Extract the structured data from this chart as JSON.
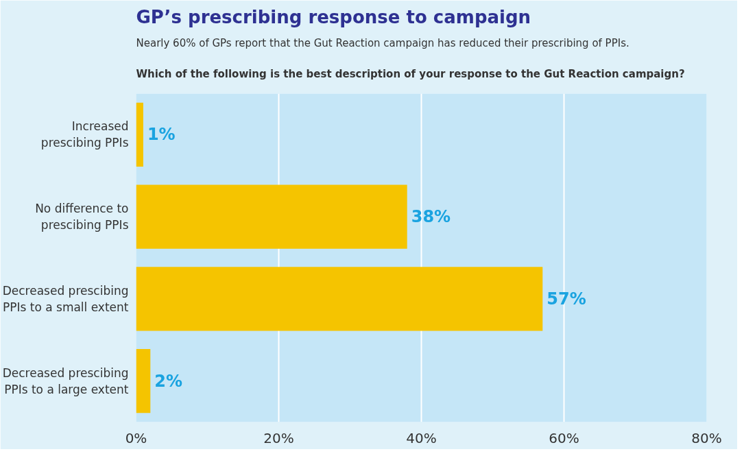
{
  "chart_data": {
    "type": "bar",
    "orientation": "horizontal",
    "title": "GP’s prescribing response to campaign",
    "subtitle": "Nearly 60% of GPs report that the Gut Reaction campaign has reduced their prescribing of PPIs.",
    "annotations": [
      "Which of the following is the best description of your response to the Gut Reaction campaign?"
    ],
    "categories": [
      "Increased\nprescibing PPIs",
      "No difference to\nprescibing PPIs",
      "Decreased prescibing\nPPIs to a small extent",
      "Decreased prescibing\nPPIs to a large extent"
    ],
    "values": [
      1,
      38,
      57,
      2
    ],
    "value_labels": [
      "1%",
      "38%",
      "57%",
      "2%"
    ],
    "color": "#f5c400",
    "xlim": [
      0,
      80
    ],
    "xticks": [
      {
        "value": 0,
        "label": "0%"
      },
      {
        "value": 20,
        "label": "20%"
      },
      {
        "value": 40,
        "label": "40%"
      },
      {
        "value": 60,
        "label": "60%"
      },
      {
        "value": 80,
        "label": "80%"
      }
    ],
    "grid": "x"
  }
}
